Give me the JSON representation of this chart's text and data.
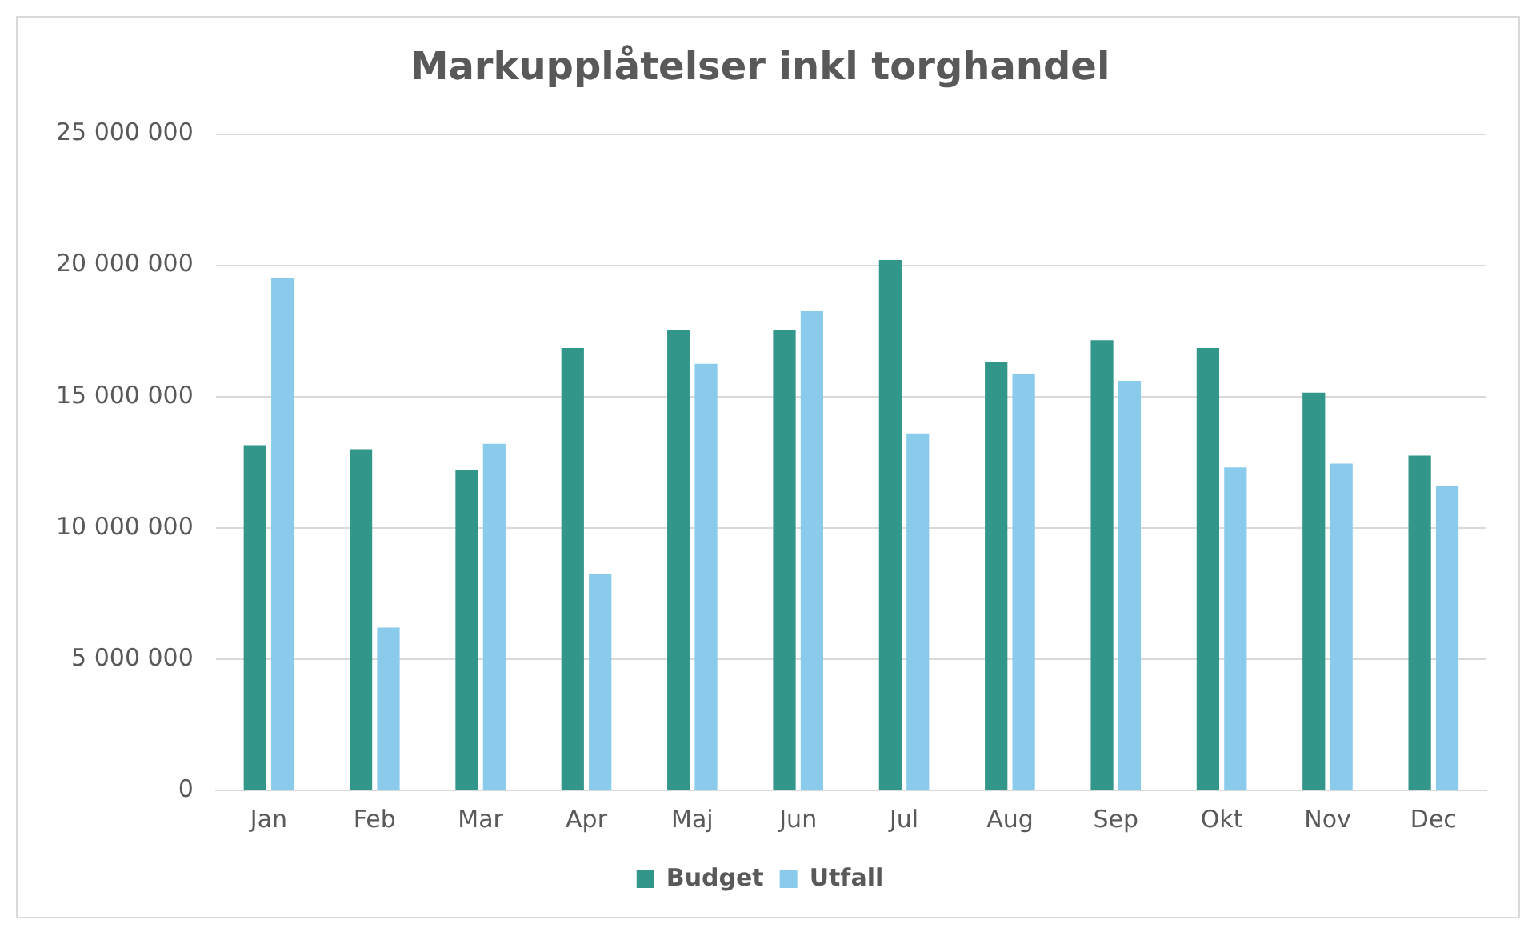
{
  "chart_data": {
    "type": "bar",
    "title": "Markupplåtelser inkl torghandel",
    "categories": [
      "Jan",
      "Feb",
      "Mar",
      "Apr",
      "Maj",
      "Jun",
      "Jul",
      "Aug",
      "Sep",
      "Okt",
      "Nov",
      "Dec"
    ],
    "series": [
      {
        "name": "Budget",
        "color": "#33968a",
        "values": [
          13150000,
          13000000,
          12200000,
          16850000,
          17550000,
          17550000,
          20200000,
          16300000,
          17150000,
          16850000,
          15150000,
          12750000
        ]
      },
      {
        "name": "Utfall",
        "color": "#8acbec",
        "values": [
          19500000,
          6200000,
          13200000,
          8250000,
          16250000,
          18250000,
          13600000,
          15850000,
          15600000,
          12300000,
          12450000,
          11600000
        ]
      }
    ],
    "ylim": [
      0,
      25000000
    ],
    "yticks": [
      {
        "value": 0,
        "label": "0"
      },
      {
        "value": 5000000,
        "label": "5 000 000"
      },
      {
        "value": 10000000,
        "label": "10 000 000"
      },
      {
        "value": 15000000,
        "label": "15 000 000"
      },
      {
        "value": 20000000,
        "label": "20 000 000"
      },
      {
        "value": 25000000,
        "label": "25 000 000"
      }
    ],
    "grid": "y",
    "legend": "bottom"
  }
}
